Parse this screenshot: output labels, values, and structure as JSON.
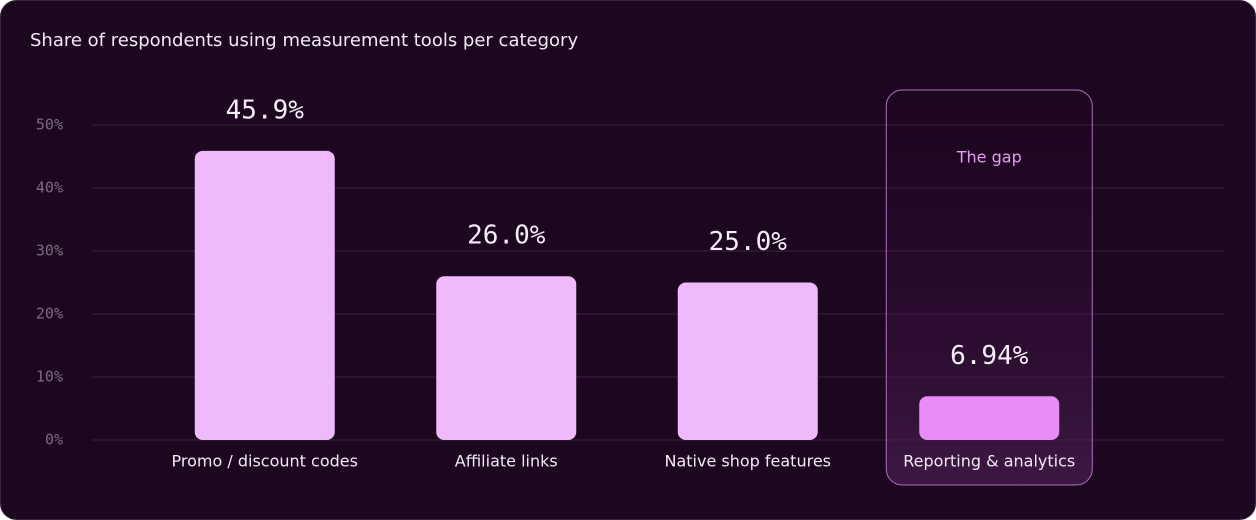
{
  "chart_data": {
    "type": "bar",
    "title": "Share of respondents using measurement tools per category",
    "categories": [
      "Promo / discount codes",
      "Affiliate links",
      "Native shop features",
      "Reporting & analytics"
    ],
    "values": [
      45.9,
      26.0,
      25.0,
      6.94
    ],
    "value_labels": [
      "45.9%",
      "26.0%",
      "25.0%",
      "6.94%"
    ],
    "colors": [
      "#f0b9fc",
      "#f0b9fc",
      "#f0b9fc",
      "#e98cf8"
    ],
    "ylim": [
      0,
      50
    ],
    "yticks": [
      {
        "value": 0,
        "label": "0%"
      },
      {
        "value": 10,
        "label": "10%"
      },
      {
        "value": 20,
        "label": "20%"
      },
      {
        "value": 30,
        "label": "30%"
      },
      {
        "value": 40,
        "label": "40%"
      },
      {
        "value": 50,
        "label": "50%"
      }
    ],
    "grid": true,
    "annotation": "The gap"
  }
}
